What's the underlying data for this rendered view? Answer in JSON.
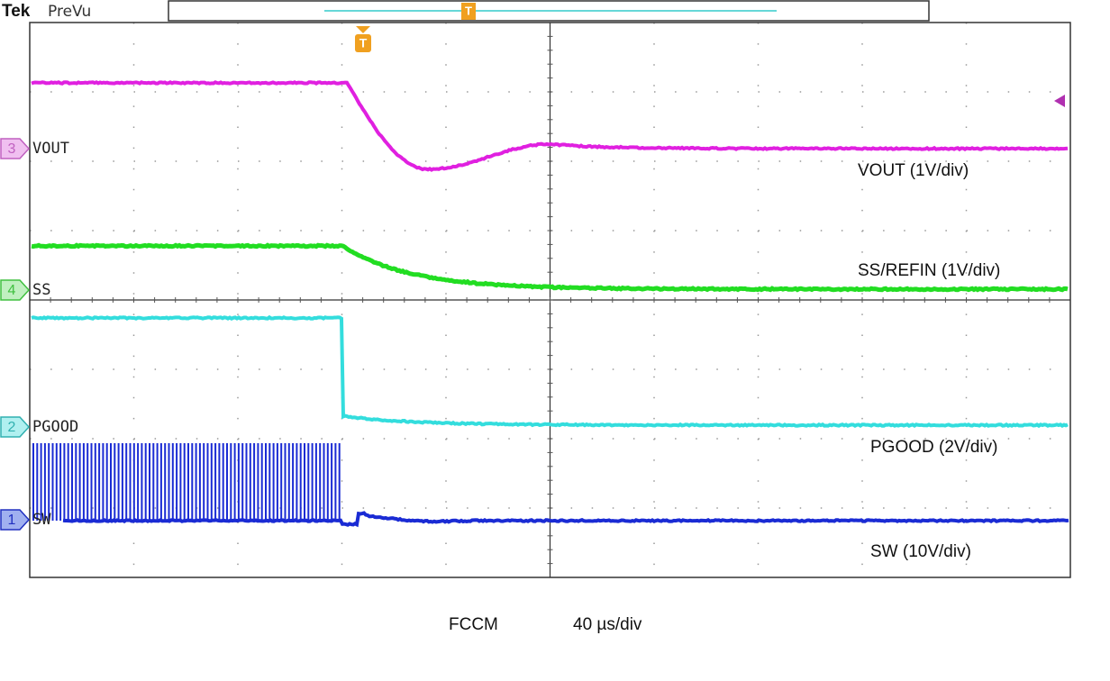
{
  "header": {
    "brand": "Tek",
    "mode": "PreVu"
  },
  "trigger_marker": "T",
  "channels": [
    {
      "number": "3",
      "label": "VOUT",
      "scale_label": "VOUT (1V/div)"
    },
    {
      "number": "4",
      "label": "SS",
      "scale_label": "SS/REFIN (1V/div)"
    },
    {
      "number": "2",
      "label": "PGOOD",
      "scale_label": "PGOOD (2V/div)"
    },
    {
      "number": "1",
      "label": "SW",
      "scale_label": "SW (10V/div)"
    }
  ],
  "footer": {
    "mode": "FCCM",
    "timebase": "40 µs/div"
  }
}
